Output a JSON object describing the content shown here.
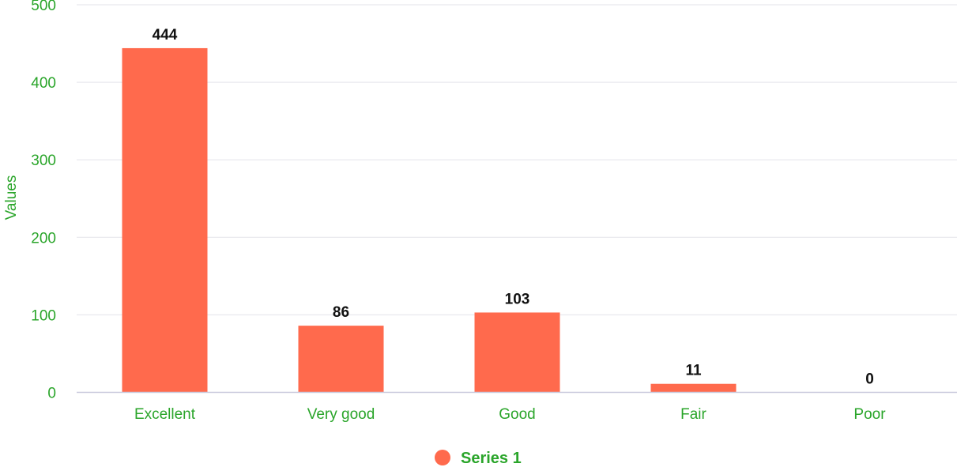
{
  "colors": {
    "bar": "#ff6a4d",
    "axis_text": "#2aa52a",
    "data_label": "#111111",
    "grid": "#e3e3ea",
    "baseline": "#c9c9dd"
  },
  "chart_data": {
    "type": "bar",
    "categories": [
      "Excellent",
      "Very good",
      "Good",
      "Fair",
      "Poor"
    ],
    "series": [
      {
        "name": "Series 1",
        "values": [
          444,
          86,
          103,
          11,
          0
        ]
      }
    ],
    "yticks": [
      "0",
      "100",
      "200",
      "300",
      "400",
      "500"
    ],
    "ylim": [
      0,
      500
    ],
    "ylabel": "Values",
    "xlabel": "",
    "grid": true,
    "legend_position": "bottom-center"
  }
}
